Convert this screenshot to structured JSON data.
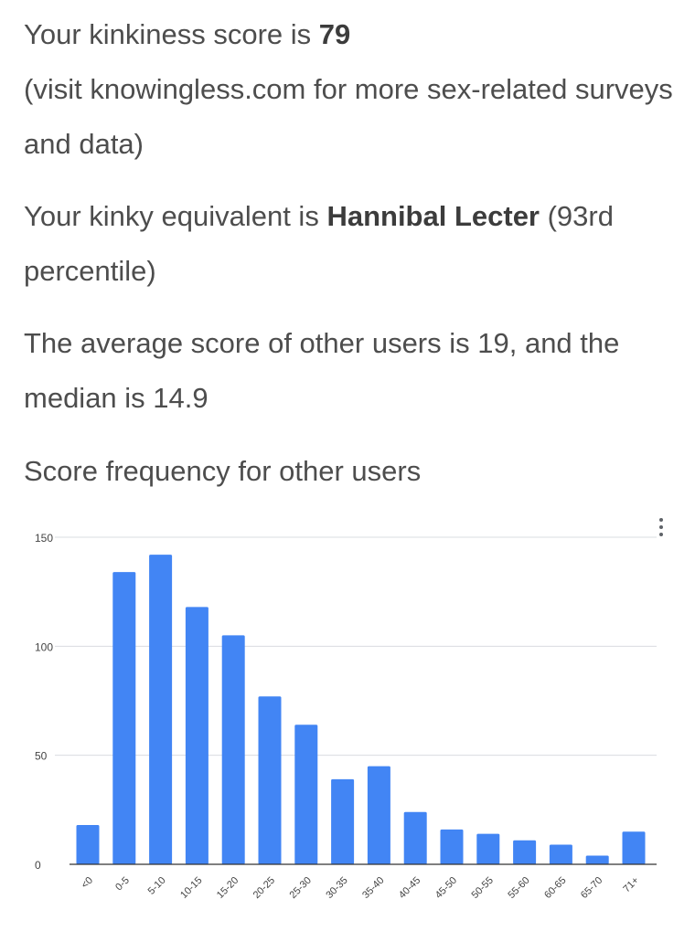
{
  "score_line": {
    "prefix": "Your kinkiness score is ",
    "score": "79"
  },
  "visit_line": "(visit knowingless.com for more sex-related surveys and data)",
  "equivalent_line": {
    "prefix": "Your kinky equivalent is ",
    "name": "Hannibal Lecter",
    "suffix": " (93rd percentile)"
  },
  "average_line": "The average score of other users is 19, and the median is 14.9",
  "chart_heading": "Score frequency for other users",
  "chart_data": {
    "type": "bar",
    "title": "",
    "xlabel": "",
    "ylabel": "",
    "categories": [
      "<0",
      "0-5",
      "5-10",
      "10-15",
      "15-20",
      "20-25",
      "25-30",
      "30-35",
      "35-40",
      "40-45",
      "45-50",
      "50-55",
      "55-60",
      "60-65",
      "65-70",
      "71+"
    ],
    "values": [
      18,
      134,
      142,
      118,
      105,
      77,
      64,
      39,
      45,
      24,
      16,
      14,
      11,
      9,
      4,
      15
    ],
    "yticks": [
      "0",
      "50",
      "100",
      "150"
    ],
    "ylim": [
      0,
      150
    ],
    "grid": true,
    "legend": "none",
    "bar_color": "#4285f4",
    "grid_color": "#dadce0"
  },
  "menu_icon": "more-vert-icon"
}
